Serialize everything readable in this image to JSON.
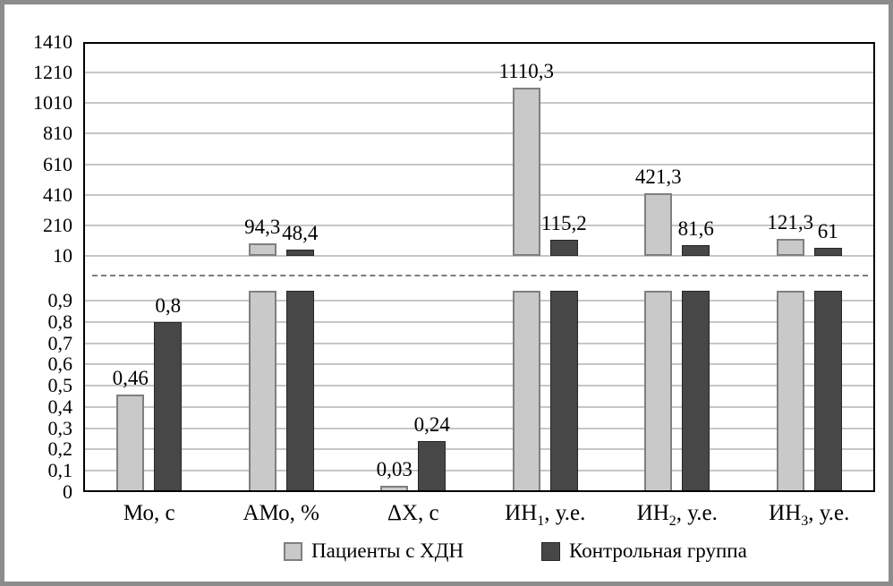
{
  "chart_data": {
    "type": "bar",
    "title": "",
    "broken_axis": true,
    "grid": true,
    "legend_position": "bottom",
    "categories": [
      {
        "base": "Мо, с",
        "sub": "",
        "suffix": ""
      },
      {
        "base": "АМо, %",
        "sub": "",
        "suffix": ""
      },
      {
        "base": "ΔХ, с",
        "sub": "",
        "suffix": ""
      },
      {
        "base": "ИН",
        "sub": "1",
        "suffix": ", у.е."
      },
      {
        "base": "ИН",
        "sub": "2",
        "suffix": ", у.е."
      },
      {
        "base": "ИН",
        "sub": "3",
        "suffix": ", у.е."
      }
    ],
    "series": [
      {
        "name": "Пациенты с ХДН",
        "values": [
          0.46,
          94.3,
          0.03,
          1110.3,
          421.3,
          121.3
        ],
        "value_labels": [
          "0,46",
          "94,3",
          "0,03",
          "1110,3",
          "421,3",
          "121,3"
        ],
        "fill": "#c9c9c9",
        "border": "#7f7f7f"
      },
      {
        "name": "Контрольная группа",
        "values": [
          0.8,
          48.4,
          0.24,
          115.2,
          81.6,
          61
        ],
        "value_labels": [
          "0,8",
          "48,4",
          "0,24",
          "115,2",
          "81,6",
          "61"
        ],
        "fill": "#474747",
        "border": "#262626"
      }
    ],
    "y_axis": {
      "upper": {
        "min": 10,
        "max": 1410,
        "tick_values": [
          1410,
          1210,
          1010,
          810,
          610,
          410,
          210,
          10
        ],
        "tick_labels": [
          "1410",
          "1210",
          "1010",
          "810",
          "610",
          "410",
          "210",
          "10"
        ]
      },
      "lower": {
        "min": 0,
        "max": 0.9,
        "tick_values": [
          0.9,
          0.8,
          0.7,
          0.6,
          0.5,
          0.4,
          0.3,
          0.2,
          0.1,
          0
        ],
        "tick_labels": [
          "0,9",
          "0,8",
          "0,7",
          "0,6",
          "0,5",
          "0,4",
          "0,3",
          "0,2",
          "0,1",
          "0"
        ]
      }
    },
    "colors": {
      "background": "#ffffff",
      "frame": "#8c8c8c",
      "grid": "#c6c6c6",
      "axis": "#000000",
      "break_line": "#7d7d7d"
    }
  }
}
